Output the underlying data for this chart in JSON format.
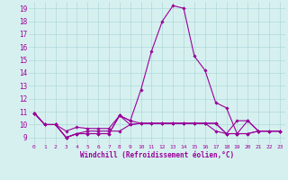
{
  "xlabel": "Windchill (Refroidissement éolien,°C)",
  "ylabel": "",
  "bg_color": "#d6f0f0",
  "grid_color": "#b0d8d8",
  "line_color": "#990099",
  "xlim": [
    -0.5,
    23.5
  ],
  "ylim": [
    8.5,
    19.5
  ],
  "yticks": [
    9,
    10,
    11,
    12,
    13,
    14,
    15,
    16,
    17,
    18,
    19
  ],
  "xticks": [
    0,
    1,
    2,
    3,
    4,
    5,
    6,
    7,
    8,
    9,
    10,
    11,
    12,
    13,
    14,
    15,
    16,
    17,
    18,
    19,
    20,
    21,
    22,
    23
  ],
  "series": [
    {
      "x": [
        0,
        1,
        2,
        3,
        4,
        5,
        6,
        7,
        8,
        9,
        10,
        11,
        12,
        13,
        14,
        15,
        16,
        17,
        18,
        19,
        20,
        21,
        22,
        23
      ],
      "y": [
        10.9,
        10.0,
        10.0,
        9.5,
        9.8,
        9.7,
        9.7,
        9.7,
        10.7,
        10.0,
        10.1,
        10.1,
        10.1,
        10.1,
        10.1,
        10.1,
        10.1,
        10.1,
        9.3,
        10.3,
        10.3,
        9.5,
        9.5,
        9.5
      ]
    },
    {
      "x": [
        0,
        1,
        2,
        3,
        4,
        5,
        6,
        7,
        8,
        9,
        10,
        11,
        12,
        13,
        14,
        15,
        16,
        17,
        18,
        19,
        20,
        21,
        22,
        23
      ],
      "y": [
        10.9,
        10.0,
        10.0,
        9.0,
        9.3,
        9.3,
        9.3,
        9.3,
        10.7,
        10.3,
        12.7,
        15.7,
        18.0,
        19.2,
        19.0,
        15.3,
        14.2,
        11.7,
        11.3,
        9.3,
        10.3,
        9.5,
        9.5,
        9.5
      ]
    },
    {
      "x": [
        0,
        1,
        2,
        3,
        4,
        5,
        6,
        7,
        8,
        9,
        10,
        11,
        12,
        13,
        14,
        15,
        16,
        17,
        18,
        19,
        20,
        21,
        22,
        23
      ],
      "y": [
        10.9,
        10.0,
        10.0,
        9.0,
        9.3,
        9.3,
        9.3,
        9.3,
        10.7,
        10.3,
        10.1,
        10.1,
        10.1,
        10.1,
        10.1,
        10.1,
        10.1,
        10.1,
        9.3,
        9.3,
        9.3,
        9.5,
        9.5,
        9.5
      ]
    },
    {
      "x": [
        0,
        1,
        2,
        3,
        4,
        5,
        6,
        7,
        8,
        9,
        10,
        11,
        12,
        13,
        14,
        15,
        16,
        17,
        18,
        19,
        20,
        21,
        22,
        23
      ],
      "y": [
        10.9,
        10.0,
        10.0,
        9.0,
        9.3,
        9.5,
        9.5,
        9.5,
        9.5,
        10.0,
        10.1,
        10.1,
        10.1,
        10.1,
        10.1,
        10.1,
        10.1,
        9.5,
        9.3,
        9.3,
        9.3,
        9.5,
        9.5,
        9.5
      ]
    }
  ]
}
